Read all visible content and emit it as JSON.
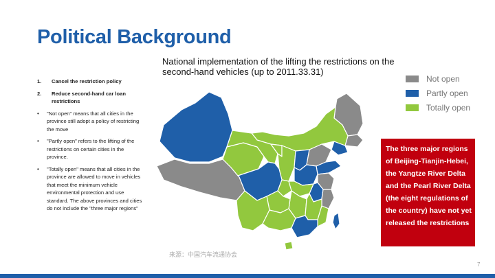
{
  "slide": {
    "title": "Political Background",
    "map_caption": "National implementation of the lifting the restrictions on the second-hand vehicles (up to 2011.33.31)",
    "source": "来源：中国汽车流通协会",
    "page_number": "7"
  },
  "left_column": {
    "numbered": [
      {
        "num": "1.",
        "text": "Cancel the restriction policy"
      },
      {
        "num": "2.",
        "text": "Reduce second-hand car loan restrictions"
      }
    ],
    "bullets": [
      {
        "dot": "•",
        "text": "\"Not open\" means that all cities in the province still adopt a policy of restricting the move"
      },
      {
        "dot": "•",
        "text": "\"Partly open\" refers to the lifting of the restrictions on certain cities in the province."
      },
      {
        "dot": "•",
        "text": "\"Totally open\" means that all cities in the province are allowed to move in vehicles that meet the minimum vehicle environmental protection and use standard. The above provinces and cities do not include the \"three major regions\""
      }
    ]
  },
  "legend": [
    {
      "label": "Not open",
      "color": "#8a8a8a"
    },
    {
      "label": "Partly open",
      "color": "#1f5fa9"
    },
    {
      "label": "Totally open",
      "color": "#92c83e"
    }
  ],
  "callout": {
    "text": "The three major regions of Beijing-Tianjin-Hebei, the Yangtze River Delta and the Pearl River Delta (the eight regulations of the country) have not yet released the restrictions",
    "bg_color": "#c1000e"
  },
  "colors": {
    "title": "#1f5fa9",
    "not_open": "#8a8a8a",
    "partly_open": "#1f5fa9",
    "totally_open": "#92c83e"
  }
}
